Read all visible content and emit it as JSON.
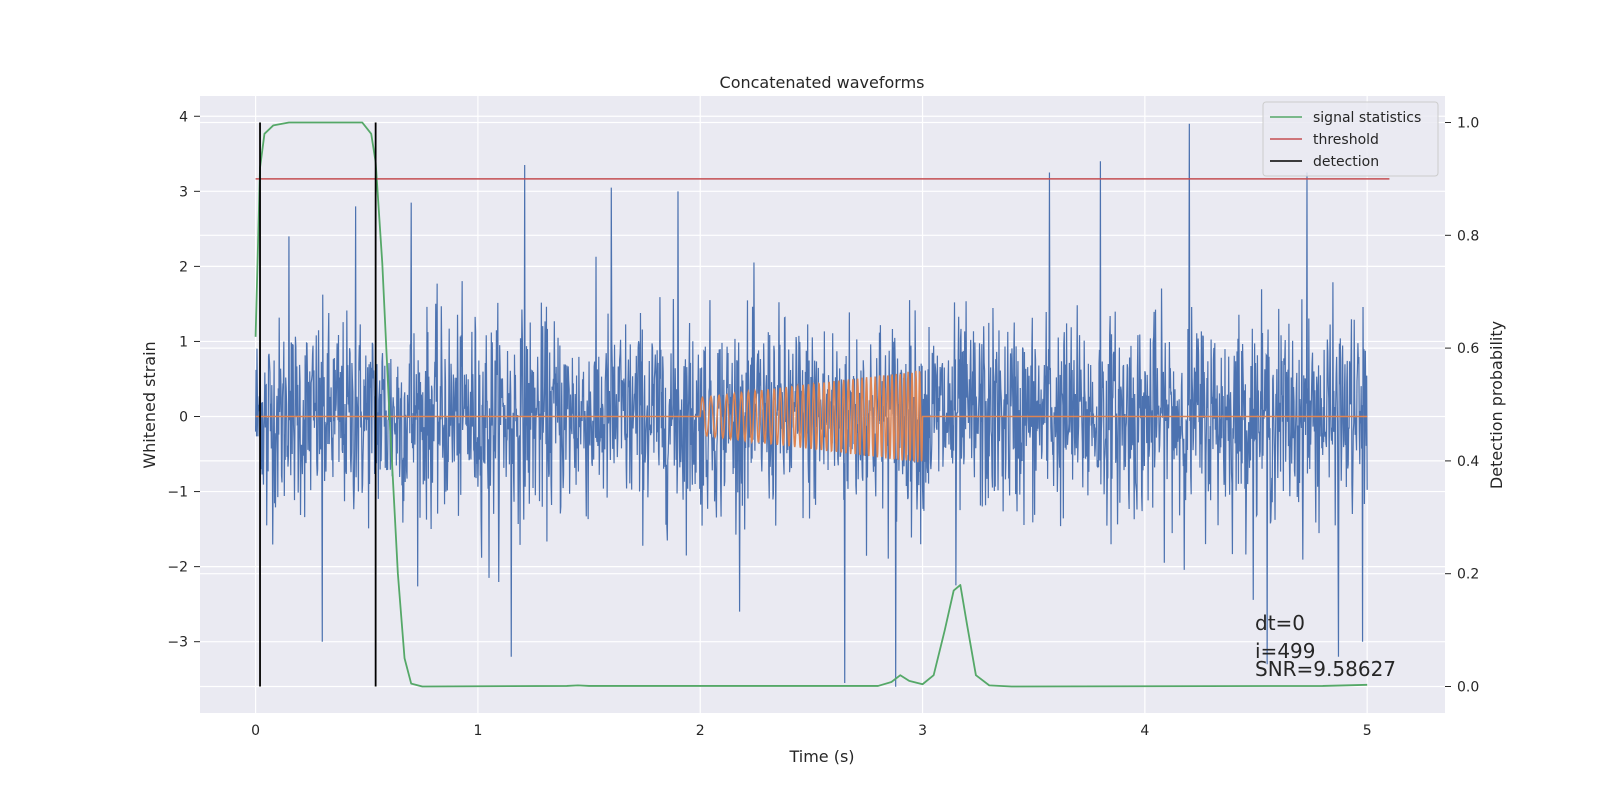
{
  "chart_data": {
    "type": "line",
    "title": "Concatenated waveforms",
    "xlabel": "Time (s)",
    "ylabel": "Whitened strain",
    "y2label": "Detection probability",
    "xlim": [
      -0.25,
      5.35
    ],
    "ylim": [
      -3.95,
      4.27
    ],
    "y2lim": [
      -0.047,
      1.047
    ],
    "x_ticks": [
      0,
      1,
      2,
      3,
      4,
      5
    ],
    "y_ticks": [
      4,
      3,
      2,
      1,
      0,
      -1,
      -2,
      -3
    ],
    "y2_ticks": [
      1.0,
      0.8,
      0.6,
      0.4,
      0.2,
      0.0
    ],
    "x_tick_labels": [
      "0",
      "1",
      "2",
      "3",
      "4",
      "5"
    ],
    "y_tick_labels": [
      "4",
      "3",
      "2",
      "1",
      "0",
      "−1",
      "−2",
      "−3"
    ],
    "y2_tick_labels": [
      "1.0",
      "0.8",
      "0.6",
      "0.4",
      "0.2",
      "0.0"
    ],
    "grid": true,
    "legend_position": "top-right",
    "series": [
      {
        "name": "",
        "axis": "left",
        "color": "#4c72b0",
        "kind": "noise",
        "x_range": [
          0,
          5
        ],
        "sigma": 0.65,
        "peaks": [
          {
            "x": 0.02,
            "y": 0.9
          },
          {
            "x": 0.05,
            "y": -1.45
          },
          {
            "x": 0.15,
            "y": 2.4
          },
          {
            "x": 0.3,
            "y": -3.0
          },
          {
            "x": 0.45,
            "y": 2.8
          },
          {
            "x": 0.7,
            "y": 2.85
          },
          {
            "x": 1.05,
            "y": -2.15
          },
          {
            "x": 1.15,
            "y": -3.2
          },
          {
            "x": 1.21,
            "y": 3.35
          },
          {
            "x": 1.6,
            "y": 3.05
          },
          {
            "x": 1.9,
            "y": 3.0
          },
          {
            "x": 2.65,
            "y": -3.55
          },
          {
            "x": 2.88,
            "y": -3.6
          },
          {
            "x": 3.15,
            "y": -2.25
          },
          {
            "x": 3.57,
            "y": 3.25
          },
          {
            "x": 3.8,
            "y": 3.4
          },
          {
            "x": 4.2,
            "y": 3.9
          },
          {
            "x": 4.55,
            "y": -3.3
          },
          {
            "x": 4.73,
            "y": 3.25
          },
          {
            "x": 4.87,
            "y": -3.2
          },
          {
            "x": 4.98,
            "y": -3.0
          }
        ]
      },
      {
        "name": "",
        "axis": "left",
        "color": "#dd8452",
        "kind": "chirp",
        "x_range": [
          0,
          5
        ],
        "chirp_window": [
          2.0,
          3.0
        ],
        "amplitude_start": 0.25,
        "amplitude_end": 0.62,
        "cycles": 42
      },
      {
        "name": "signal statistics",
        "axis": "right",
        "color": "#55a868",
        "kind": "curve",
        "points": [
          [
            0.0,
            0.62
          ],
          [
            0.02,
            0.92
          ],
          [
            0.04,
            0.98
          ],
          [
            0.08,
            0.995
          ],
          [
            0.15,
            1.0
          ],
          [
            0.48,
            1.0
          ],
          [
            0.52,
            0.98
          ],
          [
            0.54,
            0.93
          ],
          [
            0.57,
            0.75
          ],
          [
            0.6,
            0.5
          ],
          [
            0.64,
            0.2
          ],
          [
            0.67,
            0.05
          ],
          [
            0.7,
            0.005
          ],
          [
            0.75,
            0.0
          ],
          [
            1.4,
            0.001
          ],
          [
            1.45,
            0.002
          ],
          [
            1.5,
            0.001
          ],
          [
            2.8,
            0.001
          ],
          [
            2.86,
            0.008
          ],
          [
            2.9,
            0.02
          ],
          [
            2.94,
            0.01
          ],
          [
            3.0,
            0.004
          ],
          [
            3.05,
            0.02
          ],
          [
            3.1,
            0.1
          ],
          [
            3.14,
            0.17
          ],
          [
            3.17,
            0.18
          ],
          [
            3.2,
            0.11
          ],
          [
            3.24,
            0.02
          ],
          [
            3.3,
            0.002
          ],
          [
            3.4,
            0.0
          ],
          [
            4.8,
            0.001
          ],
          [
            5.0,
            0.003
          ]
        ]
      },
      {
        "name": "threshold",
        "axis": "right",
        "color": "#c44e52",
        "kind": "hline",
        "y": 0.9,
        "x_range": [
          0,
          5.1
        ]
      },
      {
        "name": "detection",
        "axis": "right",
        "color": "#000000",
        "kind": "vlines",
        "x": [
          0.02,
          0.54
        ],
        "y_range": [
          0.0,
          1.0
        ]
      }
    ],
    "annotations": [
      "dt=0",
      "i=499",
      "SNR=9.58627"
    ]
  }
}
